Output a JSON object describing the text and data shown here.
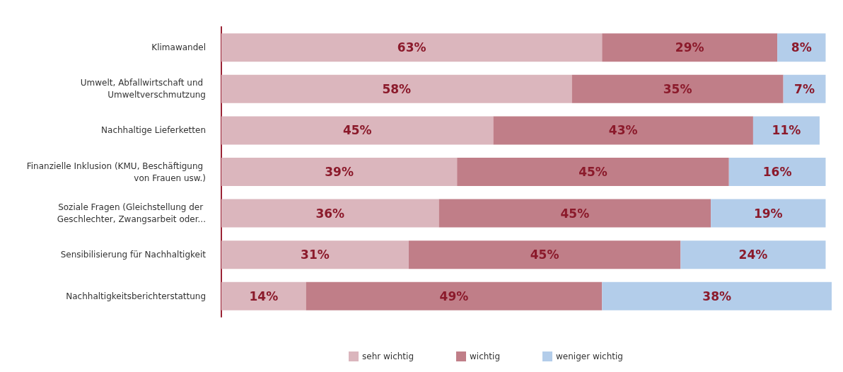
{
  "chart_data": {
    "type": "bar",
    "orientation": "horizontal",
    "stacked": true,
    "legend": "bottom",
    "categories": [
      "Klimawandel",
      "Umwelt, Abfallwirtschaft und Umweltverschmutzung",
      "Nachhaltige Lieferketten",
      "Finanzielle Inklusion (KMU, Beschäftigung von Frauen usw.)",
      "Soziale Fragen (Gleichstellung der Geschlechter, Zwangsarbeit oder...",
      "Sensibilisierung für Nachhaltigkeit",
      "Nachhaltigkeitsberichterstattung"
    ],
    "series": [
      {
        "name": "sehr wichtig",
        "color": "#dbb6bd",
        "values": [
          63,
          58,
          45,
          39,
          36,
          31,
          14
        ],
        "value_labels": [
          "63%",
          "58%",
          "45%",
          "39%",
          "36%",
          "31%",
          "14%"
        ]
      },
      {
        "name": "wichtig",
        "color": "#c07e88",
        "values": [
          29,
          35,
          43,
          45,
          45,
          45,
          49
        ],
        "value_labels": [
          "29%",
          "35%",
          "43%",
          "45%",
          "45%",
          "45%",
          "49%"
        ]
      },
      {
        "name": "weniger wichtig",
        "color": "#b3cdea",
        "values": [
          8,
          7,
          11,
          16,
          19,
          24,
          38
        ],
        "value_labels": [
          "8%",
          "7%",
          "11%",
          "16%",
          "19%",
          "24%",
          "38%"
        ]
      }
    ]
  }
}
